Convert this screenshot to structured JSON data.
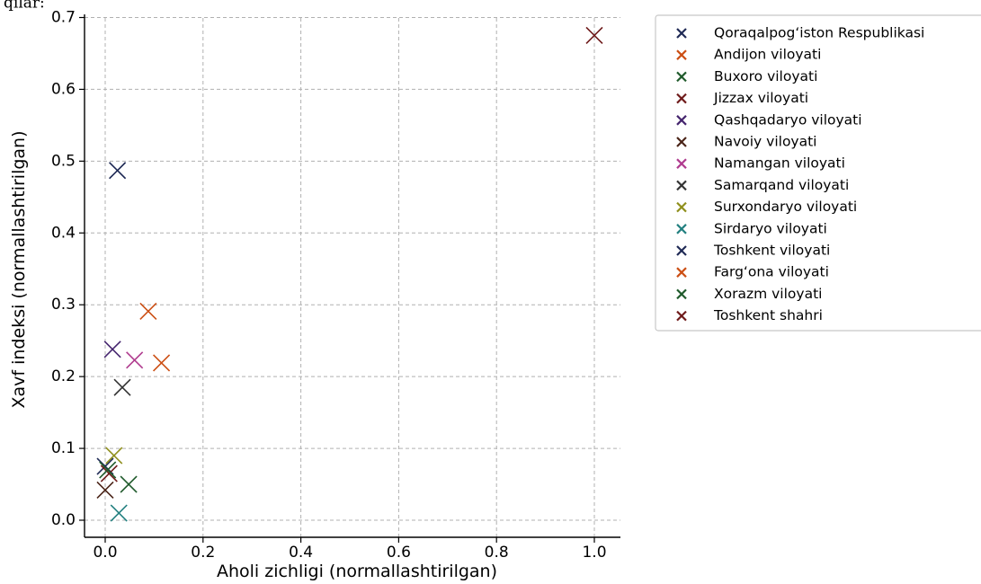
{
  "top_fragment": "qilar:",
  "chart_data": {
    "type": "scatter",
    "title": "",
    "xlabel": "Aholi zichligi (normallashtirilgan)",
    "ylabel": "Xavf indeksi (normallashtirilgan)",
    "xlim": [
      -0.05,
      1.05
    ],
    "ylim": [
      -0.025,
      0.71
    ],
    "xticks": [
      "0.0",
      "0.2",
      "0.4",
      "0.6",
      "0.8",
      "1.0"
    ],
    "yticks": [
      "0.0",
      "0.1",
      "0.2",
      "0.3",
      "0.4",
      "0.5",
      "0.6",
      "0.7"
    ],
    "grid": true,
    "marker": "x",
    "legend_position": "outside-right-top",
    "series": [
      {
        "name": "Qoraqalpogʻiston Respublikasi",
        "color": "#1f2a55",
        "x": 0.0,
        "y": 0.075
      },
      {
        "name": "Andijon viloyati",
        "color": "#cc4f14",
        "x": 0.115,
        "y": 0.219
      },
      {
        "name": "Buxoro viloyati",
        "color": "#1f5a2b",
        "x": 0.048,
        "y": 0.05
      },
      {
        "name": "Jizzax viloyati",
        "color": "#6e1a1a",
        "x": 0.008,
        "y": 0.065
      },
      {
        "name": "Qashqadaryo viloyati",
        "color": "#45256e",
        "x": 0.015,
        "y": 0.238
      },
      {
        "name": "Navoiy viloyati",
        "color": "#4a2418",
        "x": 0.0,
        "y": 0.042
      },
      {
        "name": "Namangan viloyati",
        "color": "#b03c8f",
        "x": 0.06,
        "y": 0.223
      },
      {
        "name": "Samarqand viloyati",
        "color": "#333333",
        "x": 0.035,
        "y": 0.185
      },
      {
        "name": "Surxondaryo viloyati",
        "color": "#8f8f1c",
        "x": 0.018,
        "y": 0.09
      },
      {
        "name": "Sirdaryo viloyati",
        "color": "#238080",
        "x": 0.028,
        "y": 0.01
      },
      {
        "name": "Toshkent viloyati",
        "color": "#1f2a55",
        "x": 0.025,
        "y": 0.487
      },
      {
        "name": "Fargʻona  viloyati",
        "color": "#cc4f14",
        "x": 0.088,
        "y": 0.291
      },
      {
        "name": "Xorazm viloyati",
        "color": "#1f5a2b",
        "x": 0.005,
        "y": 0.07
      },
      {
        "name": "Toshkent shahri",
        "color": "#6e1a1a",
        "x": 1.0,
        "y": 0.675
      }
    ]
  }
}
